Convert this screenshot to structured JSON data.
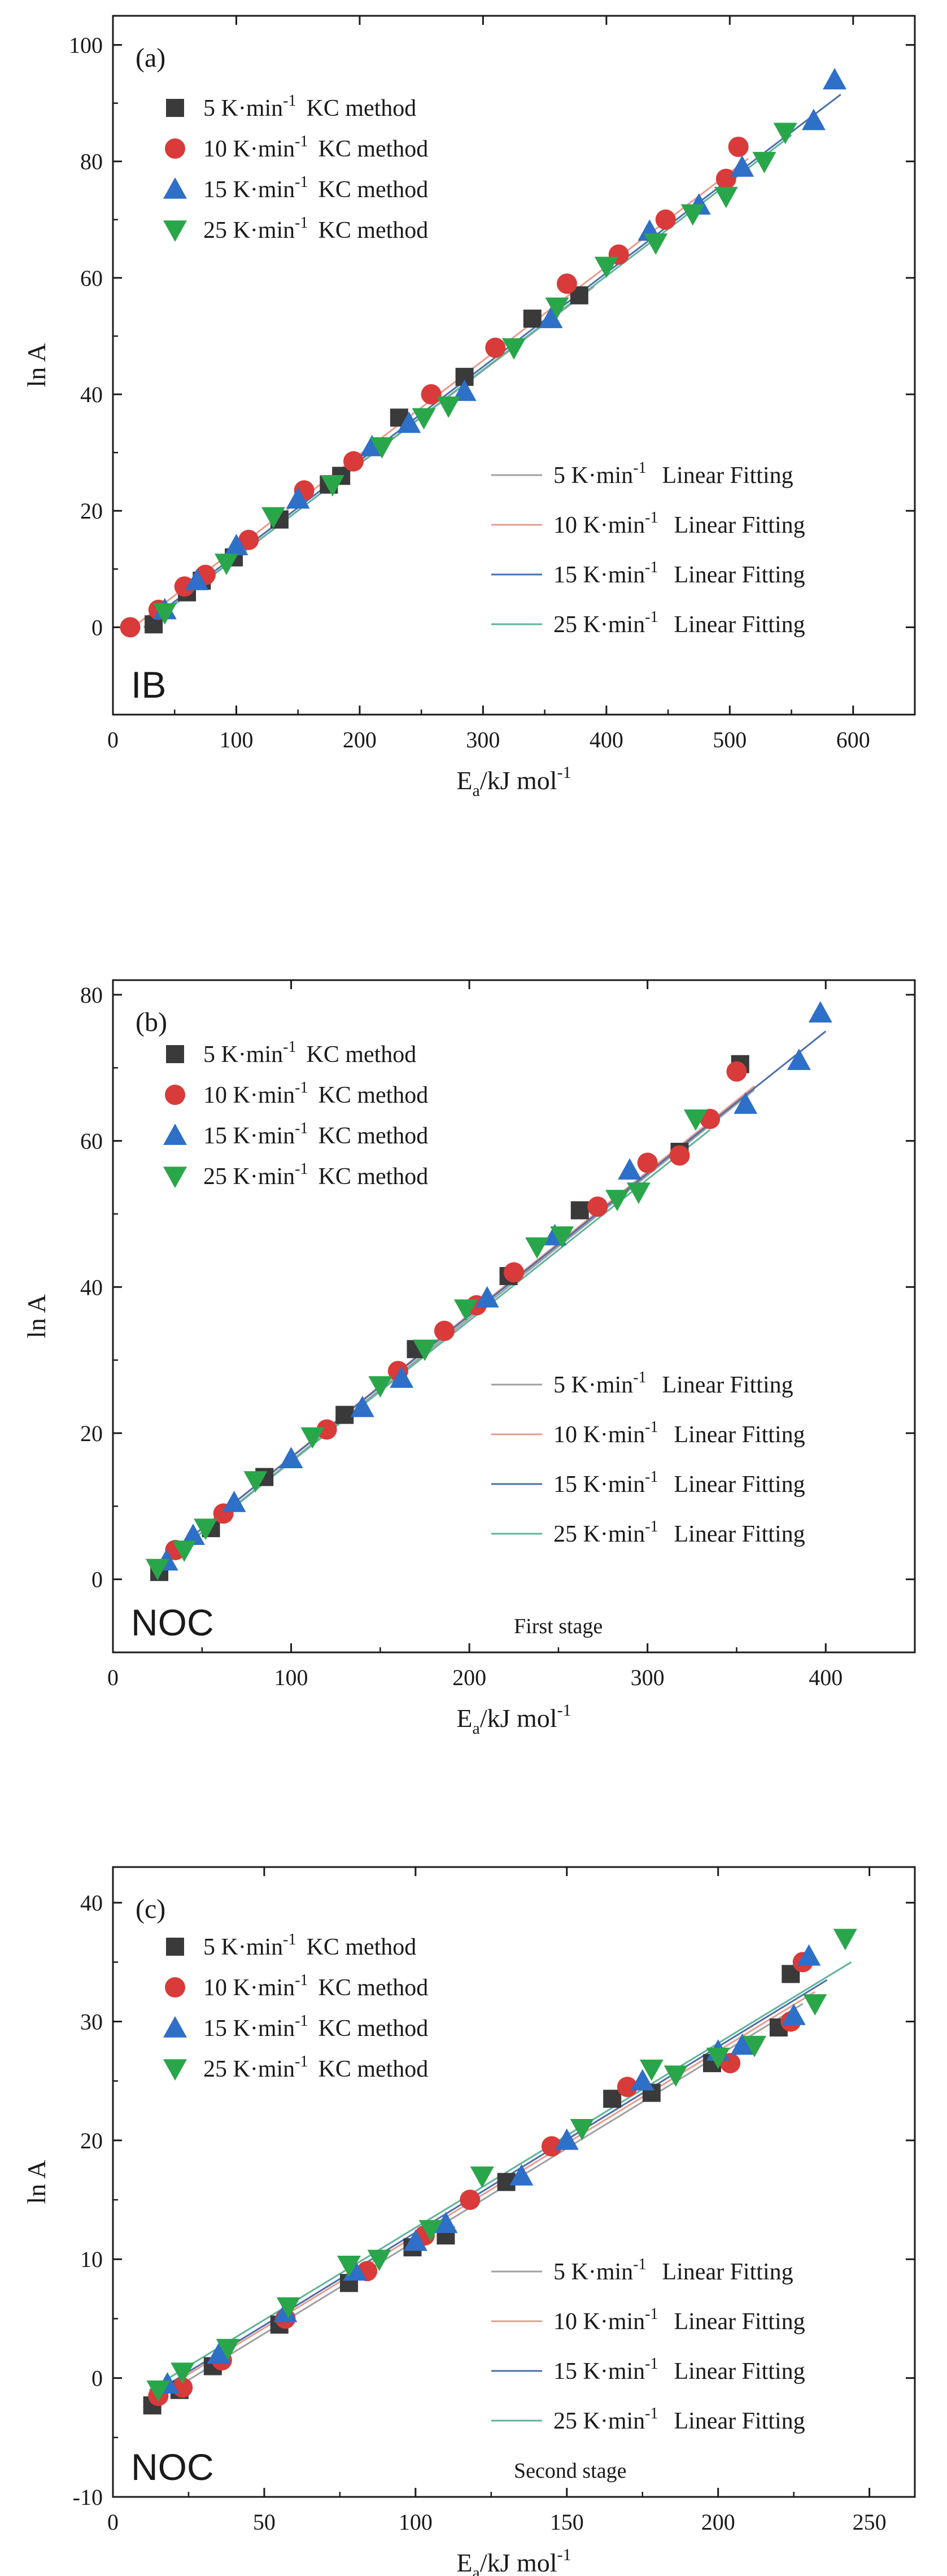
{
  "figure": {
    "colors": {
      "5": "#3a3a3a",
      "10": "#d93a3a",
      "15": "#2e6fc8",
      "25": "#2aa64a"
    },
    "fit_colors": {
      "5": "#a0a0a0",
      "10": "#e89a8e",
      "15": "#4a6fa8",
      "25": "#5fb39a"
    }
  },
  "chart_data": [
    {
      "type": "scatter",
      "panel_label": "(a)",
      "sample_label": "IB",
      "stage_label": "",
      "xlabel": "E",
      "xlabel_sub": "a",
      "xlabel_rest": "/kJ mol",
      "xlabel_sup": "-1",
      "ylabel": "ln A",
      "xlim": [
        0,
        650
      ],
      "ylim": [
        -15,
        105
      ],
      "xticks": [
        0,
        100,
        200,
        300,
        400,
        500,
        600
      ],
      "yticks": [
        0,
        20,
        40,
        60,
        80,
        100
      ],
      "legend_scatter": [
        {
          "rate": "5 K·min",
          "sup": "-1",
          "method": "KC method",
          "marker": "square",
          "color": "#3a3a3a"
        },
        {
          "rate": "10 K·min",
          "sup": "-1",
          "method": "KC method",
          "marker": "circle",
          "color": "#d93a3a"
        },
        {
          "rate": "15 K·min",
          "sup": "-1",
          "method": "KC method",
          "marker": "triangle-up",
          "color": "#2e6fc8"
        },
        {
          "rate": "25 K·min",
          "sup": "-1",
          "method": "KC method",
          "marker": "triangle-down",
          "color": "#2aa64a"
        }
      ],
      "legend_fit": [
        {
          "rate": "5 K·min",
          "sup": "-1",
          "label": "Linear Fitting",
          "color": "#a0a0a0"
        },
        {
          "rate": "10 K·min",
          "sup": "-1",
          "label": "Linear Fitting",
          "color": "#e89a8e"
        },
        {
          "rate": "15 K·min",
          "sup": "-1",
          "label": "Linear Fitting",
          "color": "#4a6fa8"
        },
        {
          "rate": "25 K·min",
          "sup": "-1",
          "label": "Linear Fitting",
          "color": "#5fb39a"
        }
      ],
      "series": [
        {
          "name": "5 K·min-1 KC method",
          "marker": "square",
          "color": "#3a3a3a",
          "x": [
            33,
            60,
            72,
            98,
            135,
            175,
            185,
            232,
            285,
            340,
            378
          ],
          "y": [
            0.5,
            6,
            8,
            12,
            18.5,
            24.5,
            26,
            36,
            43,
            53,
            57
          ]
        },
        {
          "name": "10 K·min-1 KC method",
          "marker": "circle",
          "color": "#d93a3a",
          "x": [
            14,
            37,
            58,
            75,
            110,
            155,
            195,
            258,
            310,
            368,
            410,
            448,
            497,
            507
          ],
          "y": [
            0,
            3,
            7,
            9,
            15,
            23.5,
            28.5,
            40,
            48,
            59,
            64,
            70,
            77,
            82.5
          ]
        },
        {
          "name": "15 K·min-1 KC method",
          "marker": "triangle-up",
          "color": "#2e6fc8",
          "x": [
            42,
            68,
            100,
            150,
            210,
            240,
            285,
            355,
            435,
            475,
            510,
            568,
            585
          ],
          "y": [
            3,
            8,
            14,
            22,
            31,
            35,
            40.5,
            53,
            68,
            72.5,
            79,
            87,
            94
          ]
        },
        {
          "name": "25 K·min-1 KC method",
          "marker": "triangle-down",
          "color": "#2aa64a",
          "x": [
            42,
            92,
            130,
            178,
            218,
            252,
            272,
            325,
            360,
            400,
            440,
            470,
            497,
            528,
            545
          ],
          "y": [
            2.5,
            11,
            19,
            24.5,
            31,
            36,
            38,
            48,
            55,
            62,
            66,
            71,
            74,
            80,
            85
          ]
        }
      ],
      "fits": [
        {
          "name": "5 K·min-1 Linear Fitting",
          "color": "#a0a0a0",
          "x": [
            25,
            390
          ],
          "y": [
            0.0,
            58.5
          ]
        },
        {
          "name": "10 K·min-1 Linear Fitting",
          "color": "#e89a8e",
          "x": [
            10,
            515
          ],
          "y": [
            -1.0,
            80.5
          ]
        },
        {
          "name": "15 K·min-1 Linear Fitting",
          "color": "#4a6fa8",
          "x": [
            35,
            590
          ],
          "y": [
            2.0,
            91.5
          ]
        },
        {
          "name": "25 K·min-1 Linear Fitting",
          "color": "#5fb39a",
          "x": [
            35,
            550
          ],
          "y": [
            1.5,
            84.5
          ]
        }
      ]
    },
    {
      "type": "scatter",
      "panel_label": "(b)",
      "sample_label": "NOC",
      "stage_label": "First stage",
      "xlabel": "E",
      "xlabel_sub": "a",
      "xlabel_rest": "/kJ mol",
      "xlabel_sup": "-1",
      "ylabel": "ln A",
      "xlim": [
        0,
        450
      ],
      "ylim": [
        -10,
        82
      ],
      "xticks": [
        0,
        100,
        200,
        300,
        400
      ],
      "yticks": [
        0,
        20,
        40,
        60,
        80
      ],
      "legend_scatter": [
        {
          "rate": "5 K·min",
          "sup": "-1",
          "method": "KC method",
          "marker": "square",
          "color": "#3a3a3a"
        },
        {
          "rate": "10 K·min",
          "sup": "-1",
          "method": "KC method",
          "marker": "circle",
          "color": "#d93a3a"
        },
        {
          "rate": "15 K·min",
          "sup": "-1",
          "method": "KC method",
          "marker": "triangle-up",
          "color": "#2e6fc8"
        },
        {
          "rate": "25 K·min",
          "sup": "-1",
          "method": "KC method",
          "marker": "triangle-down",
          "color": "#2aa64a"
        }
      ],
      "legend_fit": [
        {
          "rate": "5 K·min",
          "sup": "-1",
          "label": "Linear Fitting",
          "color": "#a0a0a0"
        },
        {
          "rate": "10 K·min",
          "sup": "-1",
          "label": "Linear Fitting",
          "color": "#e89a8e"
        },
        {
          "rate": "15 K·min",
          "sup": "-1",
          "label": "Linear Fitting",
          "color": "#4a6fa8"
        },
        {
          "rate": "25 K·min",
          "sup": "-1",
          "label": "Linear Fitting",
          "color": "#5fb39a"
        }
      ],
      "series": [
        {
          "name": "5 K·min-1 KC method",
          "marker": "square",
          "color": "#3a3a3a",
          "x": [
            26,
            55,
            85,
            130,
            170,
            222,
            262,
            318,
            352
          ],
          "y": [
            1,
            7,
            14,
            22.5,
            31.5,
            41.5,
            50.5,
            58.5,
            70.5
          ]
        },
        {
          "name": "10 K·min-1 KC method",
          "marker": "circle",
          "color": "#d93a3a",
          "x": [
            35,
            62,
            120,
            160,
            186,
            204,
            225,
            272,
            300,
            318,
            335,
            350
          ],
          "y": [
            4,
            9,
            20.5,
            28.5,
            34,
            37.5,
            42,
            51,
            57,
            58,
            63,
            69.5
          ]
        },
        {
          "name": "15 K·min-1 KC method",
          "marker": "triangle-up",
          "color": "#2e6fc8",
          "x": [
            30,
            45,
            68,
            100,
            140,
            162,
            210,
            248,
            290,
            355,
            385,
            397
          ],
          "y": [
            2.5,
            6,
            10.5,
            16.5,
            23.5,
            27.5,
            38.5,
            47,
            56,
            65,
            71,
            77.5
          ]
        },
        {
          "name": "25 K·min-1 KC method",
          "marker": "triangle-down",
          "color": "#2aa64a",
          "x": [
            25,
            40,
            52,
            80,
            112,
            150,
            175,
            198,
            238,
            252,
            283,
            295,
            327
          ],
          "y": [
            1.5,
            4,
            7,
            13.5,
            19.5,
            26.5,
            31.5,
            37,
            45.5,
            47,
            52,
            53,
            63
          ]
        }
      ],
      "fits": [
        {
          "name": "5 K·min-1 Linear Fitting",
          "color": "#a0a0a0",
          "x": [
            22,
            360
          ],
          "y": [
            1.0,
            67.0
          ]
        },
        {
          "name": "10 K·min-1 Linear Fitting",
          "color": "#e89a8e",
          "x": [
            22,
            360
          ],
          "y": [
            1.5,
            67.5
          ]
        },
        {
          "name": "15 K·min-1 Linear Fitting",
          "color": "#4a6fa8",
          "x": [
            22,
            400
          ],
          "y": [
            1.5,
            75.0
          ]
        },
        {
          "name": "25 K·min-1 Linear Fitting",
          "color": "#5fb39a",
          "x": [
            22,
            335
          ],
          "y": [
            1.0,
            61.5
          ]
        }
      ]
    },
    {
      "type": "scatter",
      "panel_label": "(c)",
      "sample_label": "NOC",
      "stage_label": "Second stage",
      "xlabel": "E",
      "xlabel_sub": "a",
      "xlabel_rest": "/kJ mol",
      "xlabel_sup": "-1",
      "ylabel": "ln A",
      "xlim": [
        0,
        265
      ],
      "ylim": [
        -10,
        43
      ],
      "xticks": [
        0,
        50,
        100,
        150,
        200,
        250
      ],
      "yticks": [
        -10,
        0,
        10,
        20,
        30,
        40
      ],
      "legend_scatter": [
        {
          "rate": "5 K·min",
          "sup": "-1",
          "method": "KC method",
          "marker": "square",
          "color": "#3a3a3a"
        },
        {
          "rate": "10 K·min",
          "sup": "-1",
          "method": "KC method",
          "marker": "circle",
          "color": "#d93a3a"
        },
        {
          "rate": "15 K·min",
          "sup": "-1",
          "method": "KC method",
          "marker": "triangle-up",
          "color": "#2e6fc8"
        },
        {
          "rate": "25 K·min",
          "sup": "-1",
          "method": "KC method",
          "marker": "triangle-down",
          "color": "#2aa64a"
        }
      ],
      "legend_fit": [
        {
          "rate": "5 K·min",
          "sup": "-1",
          "label": "Linear Fitting",
          "color": "#a0a0a0"
        },
        {
          "rate": "10 K·min",
          "sup": "-1",
          "label": "Linear Fitting",
          "color": "#e89a8e"
        },
        {
          "rate": "15 K·min",
          "sup": "-1",
          "label": "Linear Fitting",
          "color": "#4a6fa8"
        },
        {
          "rate": "25 K·min",
          "sup": "-1",
          "label": "Linear Fitting",
          "color": "#5fb39a"
        }
      ],
      "series": [
        {
          "name": "5 K·min-1 KC method",
          "marker": "square",
          "color": "#3a3a3a",
          "x": [
            13,
            22,
            33,
            55,
            78,
            99,
            110,
            130,
            165,
            178,
            198,
            220,
            224
          ],
          "y": [
            -2.3,
            -1,
            1,
            4.5,
            8,
            11,
            12,
            16.5,
            23.5,
            24,
            26.5,
            29.5,
            34
          ]
        },
        {
          "name": "10 K·min-1 KC method",
          "marker": "circle",
          "color": "#d93a3a",
          "x": [
            15,
            23,
            36,
            57,
            84,
            103,
            118,
            145,
            170,
            204,
            224,
            228
          ],
          "y": [
            -1.5,
            -0.8,
            1.5,
            5,
            9,
            12,
            15,
            19.5,
            24.5,
            26.5,
            30,
            35
          ]
        },
        {
          "name": "15 K·min-1 KC method",
          "marker": "triangle-up",
          "color": "#2e6fc8",
          "x": [
            18,
            35,
            57,
            80,
            100,
            110,
            135,
            150,
            175,
            200,
            208,
            225,
            230
          ],
          "y": [
            -0.5,
            2,
            5.5,
            9,
            11.5,
            13,
            17,
            20,
            25,
            27.5,
            28,
            30.5,
            35.5
          ]
        },
        {
          "name": "25 K·min-1 KC method",
          "marker": "triangle-down",
          "color": "#2aa64a",
          "x": [
            15,
            23,
            38,
            58,
            78,
            88,
            105,
            122,
            155,
            178,
            186,
            200,
            212,
            232,
            242
          ],
          "y": [
            -1,
            0.5,
            2.5,
            6,
            9.5,
            10,
            12.5,
            17,
            21,
            26,
            25.5,
            27,
            28,
            31.5,
            37
          ]
        }
      ],
      "fits": [
        {
          "name": "5 K·min-1 Linear Fitting",
          "color": "#a0a0a0",
          "x": [
            10,
            228
          ],
          "y": [
            -2.5,
            31.5
          ]
        },
        {
          "name": "10 K·min-1 Linear Fitting",
          "color": "#e89a8e",
          "x": [
            10,
            232
          ],
          "y": [
            -2.0,
            32.5
          ]
        },
        {
          "name": "15 K·min-1 Linear Fitting",
          "color": "#4a6fa8",
          "x": [
            12,
            236
          ],
          "y": [
            -1.5,
            33.5
          ]
        },
        {
          "name": "25 K·min-1 Linear Fitting",
          "color": "#5fb39a",
          "x": [
            12,
            244
          ],
          "y": [
            -1.0,
            35.0
          ]
        }
      ]
    }
  ]
}
